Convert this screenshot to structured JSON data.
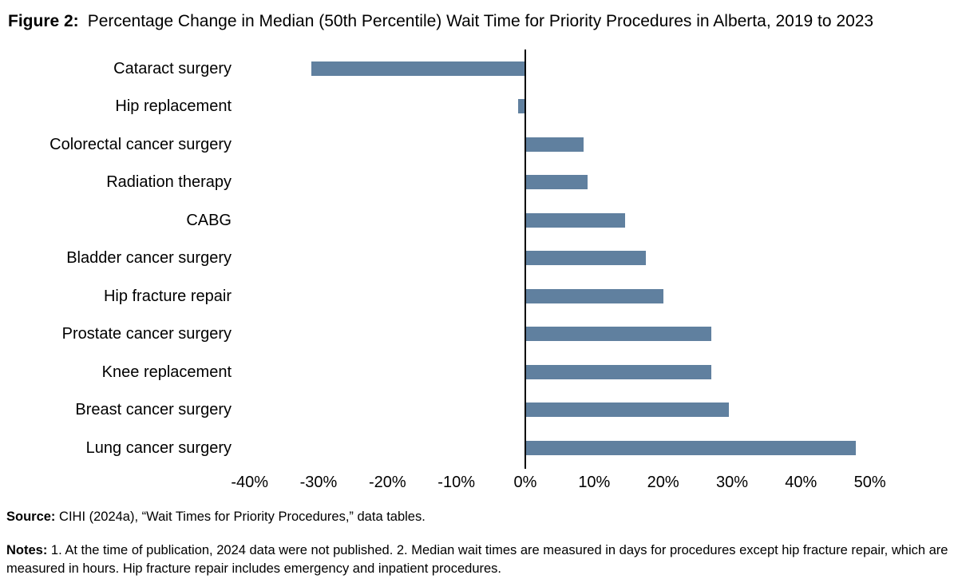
{
  "figure": {
    "label": "Figure 2:",
    "title": "Percentage Change in Median (50th Percentile) Wait Time for Priority Procedures in Alberta, 2019 to 2023"
  },
  "chart_data": {
    "type": "bar",
    "orientation": "horizontal",
    "title": "Percentage Change in Median (50th Percentile) Wait Time for Priority Procedures in Alberta, 2019 to 2023",
    "categories": [
      "Cataract surgery",
      "Hip replacement",
      "Colorectal cancer surgery",
      "Radiation therapy",
      "CABG",
      "Bladder cancer surgery",
      "Hip fracture repair",
      "Prostate cancer surgery",
      "Knee replacement",
      "Breast cancer surgery",
      "Lung cancer surgery"
    ],
    "values": [
      -31,
      -1,
      8.5,
      9,
      14.5,
      17.5,
      20,
      27,
      27,
      29.5,
      48
    ],
    "value_unit": "%",
    "xlim": [
      -44,
      57
    ],
    "ticks": [
      {
        "value": -40,
        "label": "-40%"
      },
      {
        "value": -30,
        "label": "-30%"
      },
      {
        "value": -20,
        "label": "-20%"
      },
      {
        "value": -10,
        "label": "-10%"
      },
      {
        "value": 0,
        "label": "0%"
      },
      {
        "value": 10,
        "label": "10%"
      },
      {
        "value": 20,
        "label": "20%"
      },
      {
        "value": 30,
        "label": "30%"
      },
      {
        "value": 40,
        "label": "40%"
      },
      {
        "value": 50,
        "label": "50%"
      }
    ],
    "grid": false,
    "legend": false,
    "bar_color": "#60809f",
    "axis_color": "#000000"
  },
  "footer": {
    "source_label": "Source:",
    "source_text": " CIHI (2024a), “Wait Times for Priority Procedures,” data tables.",
    "notes_label": "Notes:",
    "notes_text": " 1. At the time of publication, 2024 data were not published. 2. Median wait times are measured in days for procedures except hip fracture repair, which are measured in hours. Hip fracture repair includes emergency and inpatient procedures."
  }
}
